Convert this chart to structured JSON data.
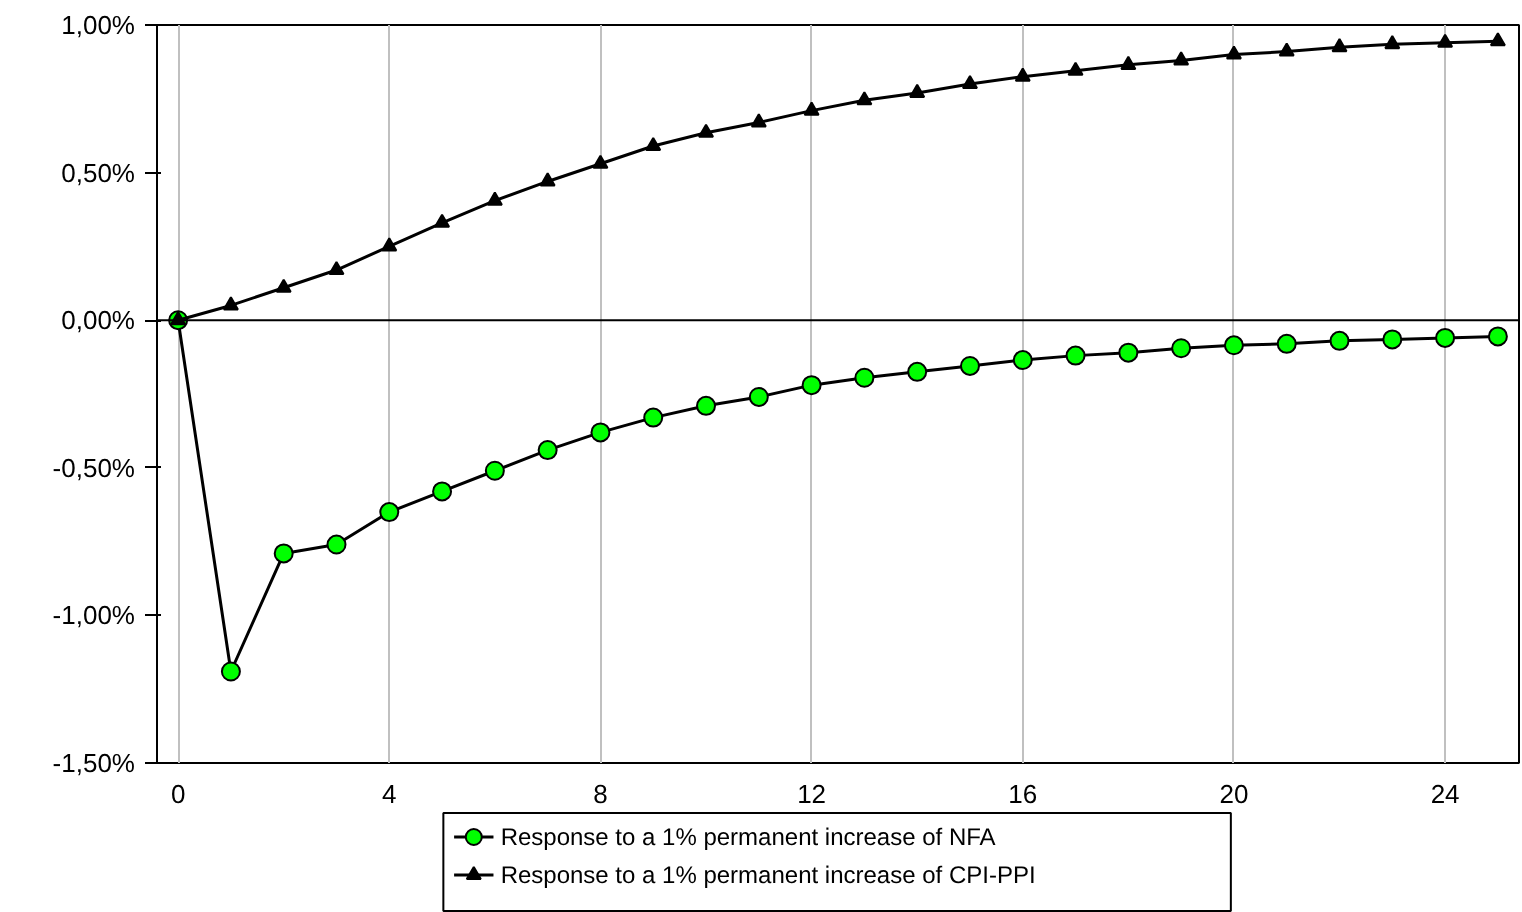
{
  "chart_data": {
    "type": "line",
    "x": [
      0,
      1,
      2,
      3,
      4,
      5,
      6,
      7,
      8,
      9,
      10,
      11,
      12,
      13,
      14,
      15,
      16,
      17,
      18,
      19,
      20,
      21,
      22,
      23,
      24,
      25
    ],
    "series": [
      {
        "name": "Response to a 1% permanent increase of NFA",
        "color": "#00ff00",
        "marker": "circle",
        "values": [
          0,
          -1.19,
          -0.79,
          -0.76,
          -0.65,
          -0.58,
          -0.51,
          -0.44,
          -0.38,
          -0.33,
          -0.29,
          -0.26,
          -0.22,
          -0.195,
          -0.175,
          -0.155,
          -0.135,
          -0.12,
          -0.11,
          -0.095,
          -0.085,
          -0.08,
          -0.07,
          -0.065,
          -0.06,
          -0.055
        ]
      },
      {
        "name": "Response to a 1% permanent increase of CPI-PPI",
        "color": "#000000",
        "marker": "triangle",
        "values": [
          0,
          0.05,
          0.11,
          0.17,
          0.25,
          0.33,
          0.405,
          0.47,
          0.53,
          0.59,
          0.635,
          0.67,
          0.71,
          0.745,
          0.77,
          0.8,
          0.825,
          0.845,
          0.865,
          0.88,
          0.9,
          0.91,
          0.925,
          0.935,
          0.94,
          0.945
        ]
      }
    ],
    "xlim": [
      -0.4,
      25.4
    ],
    "xticks": [
      0,
      4,
      8,
      12,
      16,
      20,
      24
    ],
    "ylim": [
      -1.5,
      1.0
    ],
    "yticks": [
      {
        "value": -1.5,
        "label": "-1,50%"
      },
      {
        "value": -1.0,
        "label": "-1,00%"
      },
      {
        "value": -0.5,
        "label": "-0,50%"
      },
      {
        "value": 0,
        "label": "0,00%"
      },
      {
        "value": 0.5,
        "label": "0,50%"
      },
      {
        "value": 1.0,
        "label": "1,00%"
      }
    ],
    "grid": "x",
    "legend": "bottom",
    "line_style": "solid"
  }
}
